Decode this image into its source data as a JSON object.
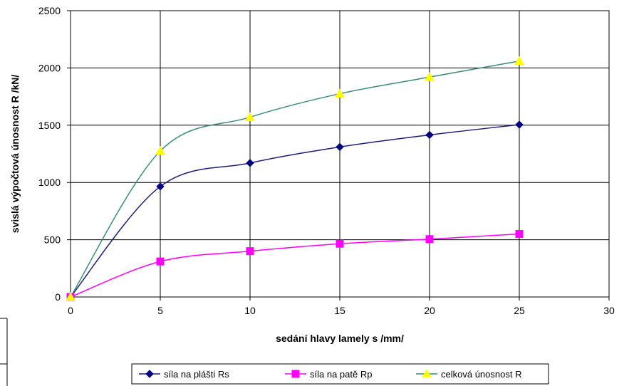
{
  "chart_data": {
    "type": "line",
    "title": "",
    "xlabel": "sedání hlavy lamely s /mm/",
    "ylabel": "svislá výpočtová únosnost R /kN/",
    "xlim": [
      0,
      30
    ],
    "ylim": [
      0,
      2500
    ],
    "xticks": [
      0,
      5,
      10,
      15,
      20,
      25,
      30
    ],
    "yticks": [
      0,
      500,
      1000,
      1500,
      2000,
      2500
    ],
    "xtick_labels": [
      "0",
      "5",
      "10",
      "15",
      "20",
      "25",
      "30"
    ],
    "ytick_labels": [
      "0",
      "500",
      "1000",
      "1500",
      "2000",
      "2500"
    ],
    "grid": true,
    "legend_position": "bottom",
    "x": [
      0,
      5,
      10,
      15,
      20,
      25
    ],
    "series": [
      {
        "name": "síla na plášti Rs",
        "values": [
          0,
          965,
          1170,
          1310,
          1415,
          1505
        ],
        "color": "#1c1c7c",
        "marker": "diamond",
        "marker_color": "#000080"
      },
      {
        "name": "síla na patě Rp",
        "values": [
          0,
          310,
          400,
          465,
          505,
          550
        ],
        "color": "#ff00ff",
        "marker": "square",
        "marker_color": "#ff00ff"
      },
      {
        "name": "celková únosnost R",
        "values": [
          0,
          1275,
          1570,
          1775,
          1920,
          2060
        ],
        "color": "#3c8c78",
        "marker": "triangle",
        "marker_color": "#ffff00"
      }
    ]
  }
}
